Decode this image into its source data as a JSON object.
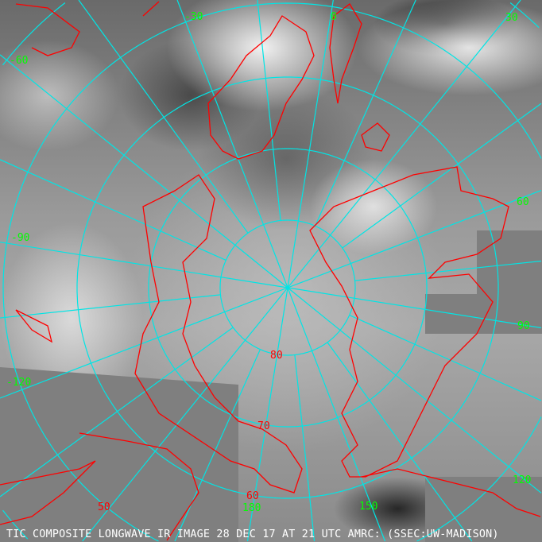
{
  "caption": "TIC COMPOSITE LONGWAVE IR IMAGE 28 DEC 17 AT 21 UTC AMRC: (SSEC:UW-MADISON)",
  "colors": {
    "grid": "#00e5e5",
    "coastline": "#ff0000",
    "longitude_labels": "#00ff00",
    "latitude_labels": "#ff0000"
  },
  "longitude_labels": [
    "-30",
    "0",
    "30",
    "-60",
    "60",
    "-90",
    "90",
    "-120",
    "120",
    "150",
    "180"
  ],
  "latitude_labels": [
    "80",
    "70",
    "60",
    "50"
  ],
  "projection": "north polar stereographic"
}
